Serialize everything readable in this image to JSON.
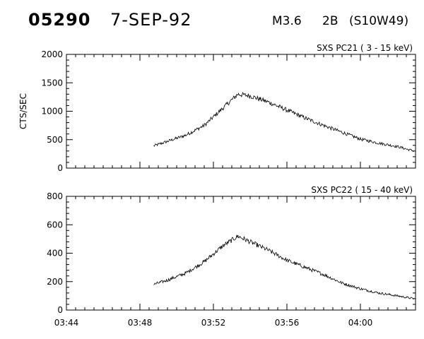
{
  "header": {
    "event_id": "05290",
    "date": "7-SEP-92",
    "goes_class": "M3.6",
    "flare_class": "2B",
    "location": "(S10W49)"
  },
  "chart_data": [
    {
      "type": "line",
      "title": "SXS PC21  (  3 - 15 keV)",
      "ylabel": "CTS/SEC",
      "xlabel": "",
      "xlim": [
        "03:44",
        "04:03"
      ],
      "ylim": [
        0,
        2000
      ],
      "yticks": [
        0,
        500,
        1000,
        1500,
        2000
      ],
      "xticks": [
        "03:44",
        "03:48",
        "03:52",
        "03:56",
        "04:00"
      ],
      "series": [
        {
          "x": [
            "03:48:45",
            "03:49:30",
            "03:50:30",
            "03:51:30",
            "03:52:30",
            "03:53:20",
            "03:54:00",
            "03:55:00",
            "03:56:00",
            "03:57:00",
            "03:58:00",
            "03:59:00",
            "04:00:00",
            "04:01:00",
            "04:02:00",
            "04:02:55"
          ],
          "values": [
            390,
            470,
            580,
            750,
            1050,
            1300,
            1270,
            1160,
            1020,
            880,
            750,
            630,
            510,
            440,
            380,
            300
          ]
        }
      ]
    },
    {
      "type": "line",
      "title": "SXS PC22  ( 15 - 40 keV)",
      "ylabel": "",
      "xlabel": "",
      "xlim": [
        "03:44",
        "04:03"
      ],
      "ylim": [
        0,
        800
      ],
      "yticks": [
        0,
        200,
        400,
        600,
        800
      ],
      "xticks": [
        "03:44",
        "03:48",
        "03:52",
        "03:56",
        "04:00"
      ],
      "series": [
        {
          "x": [
            "03:48:45",
            "03:49:30",
            "03:50:30",
            "03:51:30",
            "03:52:30",
            "03:53:20",
            "03:54:00",
            "03:55:00",
            "03:56:00",
            "03:57:00",
            "03:58:00",
            "03:59:00",
            "04:00:00",
            "04:01:00",
            "04:02:00",
            "04:02:55"
          ],
          "values": [
            180,
            210,
            260,
            340,
            450,
            520,
            480,
            420,
            350,
            300,
            250,
            190,
            150,
            120,
            100,
            80
          ]
        }
      ]
    }
  ]
}
